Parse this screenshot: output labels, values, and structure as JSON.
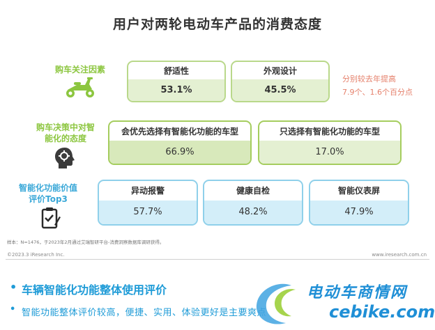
{
  "title": "用户对两轮电动车产品的消费态度",
  "rows": {
    "concern": {
      "label": "购车关注因素",
      "cards": [
        {
          "name": "舒适性",
          "value": "53.1%"
        },
        {
          "name": "外观设计",
          "value": "45.5%"
        }
      ],
      "note_line1": "分别较去年提高",
      "note_line2": "7.9个、1.6个百分点"
    },
    "decision": {
      "label_line1": "购车决策中对智",
      "label_line2": "能化的态度",
      "cards": [
        {
          "name": "会优先选择有智能化功能的车型",
          "value": "66.9%"
        },
        {
          "name": "只选择有智能化功能的车型",
          "value": "17.0%"
        }
      ]
    },
    "top3": {
      "label_line1": "智能化功能价值",
      "label_line2": "评价Top3",
      "cards": [
        {
          "name": "异动报警",
          "value": "57.7%"
        },
        {
          "name": "健康自检",
          "value": "48.2%"
        },
        {
          "name": "智能仪表屏",
          "value": "47.9%"
        }
      ]
    }
  },
  "footer": {
    "source": "样本：N=1476，于2023年2月通过艾瑞智研平台-消费洞察数据库调研获得。",
    "copyright": "©2023.3 iResearch Inc.",
    "website": "www.iresearch.com.cn"
  },
  "bullets": {
    "b1": "车辆智能化功能整体使用评价",
    "b2": "智能功能整体评价较高，便捷、实用、体验更好是主要爽点"
  },
  "watermark": {
    "cn": "电动车商情网",
    "en": "cebike.com"
  },
  "colors": {
    "green": "#8cc63f",
    "teal": "#3aa8d8",
    "blue": "#1e9bd7",
    "note": "#e5806b"
  },
  "icons": [
    "scooter-icon",
    "head-thinking-icon",
    "clipboard-check-icon",
    "cebike-logo-icon"
  ]
}
